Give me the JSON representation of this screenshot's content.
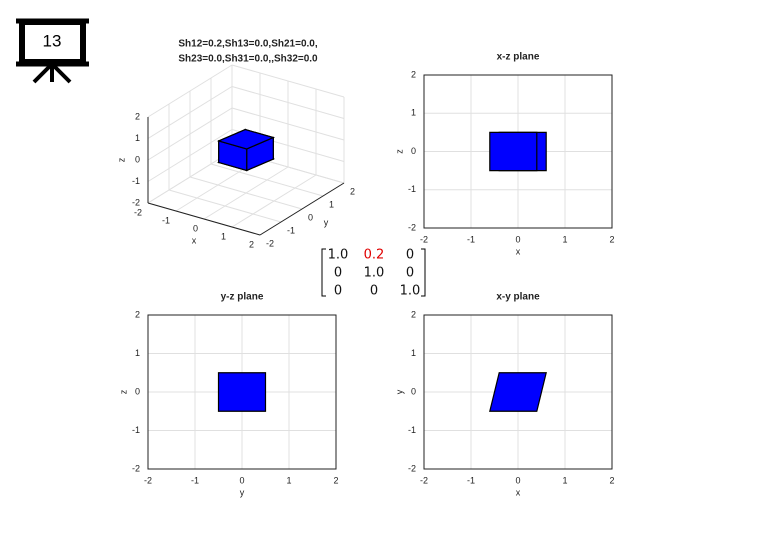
{
  "slide_number": "13",
  "matrix": [
    [
      "1.0",
      "0.2",
      "0"
    ],
    [
      "0",
      "1.0",
      "0"
    ],
    [
      "0",
      "0",
      "1.0"
    ]
  ],
  "chart_data": [
    {
      "type": "cube3d",
      "title": [
        "Sh12=0.2,Sh13=0.0,Sh21=0.0,",
        "Sh23=0.0,Sh31=0.0,,Sh32=0.0"
      ],
      "xlabel": "x",
      "ylabel": "y",
      "zlabel": "z",
      "xlim": [
        -2,
        2
      ],
      "ylim": [
        -2,
        2
      ],
      "zlim": [
        -2,
        2
      ],
      "xticks": [
        -2,
        -1,
        0,
        1,
        2
      ],
      "yticks": [
        -2,
        -1,
        0,
        1,
        2
      ],
      "zticks": [
        -2,
        -1,
        0,
        1,
        2
      ],
      "grid": true,
      "color": "#0000ff",
      "vertices": {
        "x": [
          -0.6,
          0.4,
          -0.4,
          0.6,
          -0.6,
          0.4,
          -0.4,
          0.6
        ],
        "y": [
          -0.5,
          -0.5,
          0.5,
          0.5,
          -0.5,
          -0.5,
          0.5,
          0.5
        ],
        "z": [
          -0.5,
          -0.5,
          -0.5,
          -0.5,
          0.5,
          0.5,
          0.5,
          0.5
        ]
      }
    },
    {
      "type": "polygon",
      "title": "x-z plane",
      "xlabel": "x",
      "ylabel": "z",
      "xlim": [
        -2,
        2
      ],
      "ylim": [
        -2,
        2
      ],
      "xticks": [
        -2,
        -1,
        0,
        1,
        2
      ],
      "yticks": [
        -2,
        -1,
        0,
        1,
        2
      ],
      "grid": true,
      "color": "#0000ff",
      "series": [
        {
          "x": [
            -0.4,
            0.6,
            0.6,
            -0.4
          ],
          "y": [
            -0.5,
            -0.5,
            0.5,
            0.5
          ]
        },
        {
          "x": [
            -0.6,
            0.4,
            0.4,
            -0.6
          ],
          "y": [
            -0.5,
            -0.5,
            0.5,
            0.5
          ]
        }
      ]
    },
    {
      "type": "polygon",
      "title": "y-z plane",
      "xlabel": "y",
      "ylabel": "z",
      "xlim": [
        -2,
        2
      ],
      "ylim": [
        -2,
        2
      ],
      "xticks": [
        -2,
        -1,
        0,
        1,
        2
      ],
      "yticks": [
        -2,
        -1,
        0,
        1,
        2
      ],
      "grid": true,
      "color": "#0000ff",
      "series": [
        {
          "x": [
            -0.5,
            0.5,
            0.5,
            -0.5
          ],
          "y": [
            -0.5,
            -0.5,
            0.5,
            0.5
          ]
        }
      ]
    },
    {
      "type": "polygon",
      "title": "x-y plane",
      "xlabel": "x",
      "ylabel": "y",
      "xlim": [
        -2,
        2
      ],
      "ylim": [
        -2,
        2
      ],
      "xticks": [
        -2,
        -1,
        0,
        1,
        2
      ],
      "yticks": [
        -2,
        -1,
        0,
        1,
        2
      ],
      "grid": true,
      "color": "#0000ff",
      "series": [
        {
          "x": [
            -0.6,
            0.4,
            0.6,
            -0.4
          ],
          "y": [
            -0.5,
            -0.5,
            0.5,
            0.5
          ]
        }
      ]
    }
  ]
}
